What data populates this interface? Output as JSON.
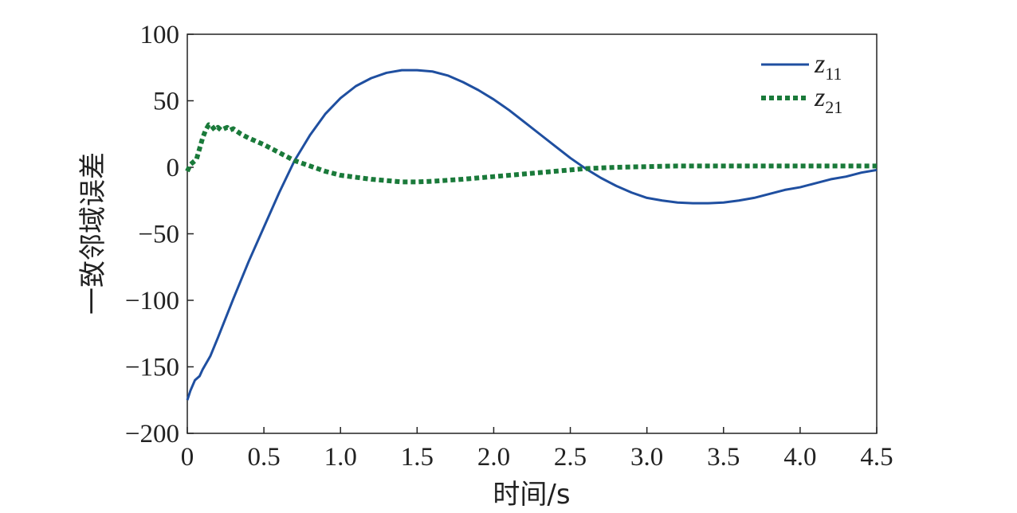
{
  "chart_data": {
    "type": "line",
    "title": "",
    "xlabel": "时间/s",
    "ylabel": "一致邻域误差",
    "xlim": [
      0,
      4.5
    ],
    "ylim": [
      -200,
      100
    ],
    "xticks": [
      0,
      0.5,
      1.0,
      1.5,
      2.0,
      2.5,
      3.0,
      3.5,
      4.0,
      4.5
    ],
    "xtick_labels": [
      "0",
      "0.5",
      "1.0",
      "1.5",
      "2.0",
      "2.5",
      "3.0",
      "3.5",
      "4.0",
      "4.5"
    ],
    "yticks": [
      100,
      50,
      0,
      -50,
      -100,
      -150,
      -200
    ],
    "ytick_labels": [
      "100",
      "50",
      "0",
      "−50",
      "−100",
      "−150",
      "−200"
    ],
    "grid": false,
    "legend_position": "top-right",
    "series": [
      {
        "name": "z11",
        "label_main": "z",
        "label_sub": "11",
        "color": "#1f4fa0",
        "style": "solid",
        "x": [
          0,
          0.02,
          0.05,
          0.08,
          0.1,
          0.15,
          0.2,
          0.3,
          0.4,
          0.5,
          0.6,
          0.7,
          0.8,
          0.9,
          1.0,
          1.1,
          1.2,
          1.3,
          1.4,
          1.5,
          1.6,
          1.7,
          1.8,
          1.9,
          2.0,
          2.1,
          2.2,
          2.3,
          2.4,
          2.5,
          2.6,
          2.7,
          2.8,
          2.9,
          3.0,
          3.1,
          3.2,
          3.3,
          3.4,
          3.5,
          3.6,
          3.7,
          3.8,
          3.9,
          4.0,
          4.1,
          4.2,
          4.3,
          4.4,
          4.5
        ],
        "y": [
          -175,
          -168,
          -160,
          -157,
          -152,
          -142,
          -128,
          -99,
          -71,
          -45,
          -19,
          5,
          24,
          40,
          52,
          61,
          67,
          71,
          73,
          73,
          72,
          69,
          64,
          58,
          51,
          43,
          34,
          25,
          16,
          7,
          -1,
          -8,
          -14,
          -19,
          -23,
          -25,
          -26.5,
          -27,
          -27,
          -26.5,
          -25,
          -23,
          -20,
          -17,
          -15,
          -12,
          -9,
          -7,
          -4,
          -2
        ]
      },
      {
        "name": "z21",
        "label_main": "z",
        "label_sub": "21",
        "color": "#1a7a3a",
        "style": "dotted",
        "x": [
          0,
          0.02,
          0.04,
          0.06,
          0.08,
          0.1,
          0.12,
          0.14,
          0.16,
          0.18,
          0.2,
          0.22,
          0.24,
          0.26,
          0.28,
          0.3,
          0.35,
          0.4,
          0.5,
          0.6,
          0.7,
          0.8,
          0.9,
          1.0,
          1.2,
          1.4,
          1.5,
          1.6,
          1.8,
          2.0,
          2.2,
          2.4,
          2.6,
          2.8,
          3.0,
          3.2,
          3.5,
          3.8,
          4.0,
          4.2,
          4.5
        ],
        "y": [
          -3,
          2,
          4,
          6,
          14,
          22,
          28,
          32,
          31,
          28,
          30,
          28,
          29,
          30,
          28,
          29,
          25,
          22,
          17,
          11,
          5,
          1,
          -3,
          -6,
          -9,
          -11,
          -11,
          -10.5,
          -9,
          -7,
          -5,
          -3,
          -1,
          0,
          0.5,
          1,
          1,
          1,
          1,
          1,
          1
        ]
      }
    ]
  }
}
